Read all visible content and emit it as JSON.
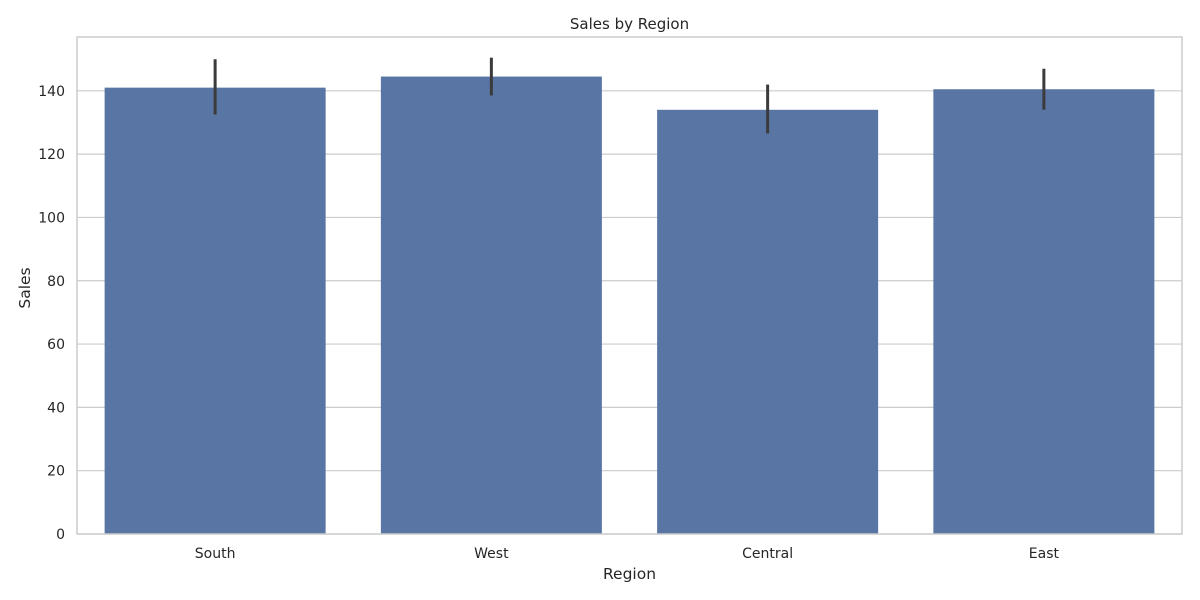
{
  "chart_data": {
    "type": "bar",
    "title": "Sales by Region",
    "xlabel": "Region",
    "ylabel": "Sales",
    "categories": [
      "South",
      "West",
      "Central",
      "East"
    ],
    "values": [
      141,
      144.5,
      134,
      140.5
    ],
    "error_low": [
      133,
      139,
      127,
      134.5
    ],
    "error_high": [
      149.5,
      150,
      141.5,
      146.5
    ],
    "ylim": [
      0,
      157
    ],
    "yticks": [
      0,
      20,
      40,
      60,
      80,
      100,
      120,
      140
    ],
    "grid": true,
    "legend": "none",
    "colors": {
      "bar": "#5875a4",
      "error_bar": "#3b3b3b",
      "grid": "#cccccc",
      "spine": "#cccccc",
      "text": "#262626"
    }
  }
}
